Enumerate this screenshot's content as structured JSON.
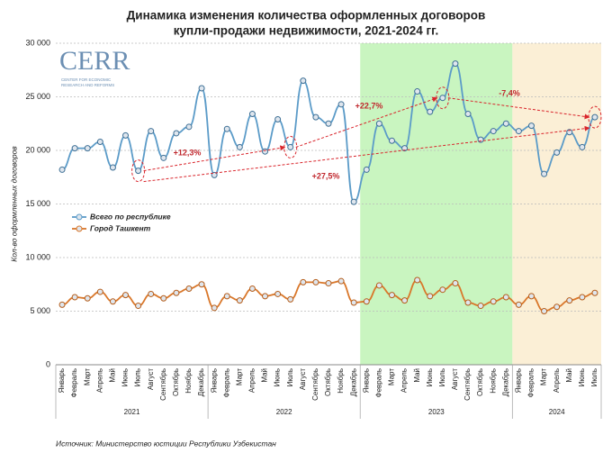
{
  "chart_data": {
    "type": "line",
    "title": [
      "Динамика изменения количества оформленных договоров",
      "купли-продажи недвижимости, 2021-2024 гг."
    ],
    "y_label": "Кол-во оформленных договоров",
    "source": "Источник: Министерство юстиции Республики Узбекистан",
    "logo": [
      "CERR",
      "CENTER FOR ECONOMIC",
      "RESEARCH AND REFORMS"
    ],
    "categories": [
      "Январь",
      "Февраль",
      "Март",
      "Апрель",
      "Май",
      "Июнь",
      "Июль",
      "Август",
      "Сентябрь",
      "Октябрь",
      "Ноябрь",
      "Декабрь",
      "Январь",
      "Февраль",
      "Март",
      "Апрель",
      "Май",
      "Июнь",
      "Июль",
      "Август",
      "Сентябрь",
      "Октябрь",
      "Ноябрь",
      "Декабрь",
      "Январь",
      "Февраль",
      "Март",
      "Апрель",
      "Май",
      "Июнь",
      "Июль",
      "Август",
      "Сентябрь",
      "Октябрь",
      "Ноябрь",
      "Декабрь",
      "Январь",
      "Февраль",
      "Март",
      "Апрель",
      "Май",
      "Июнь",
      "Июль"
    ],
    "years": [
      {
        "label": "2021",
        "months": 12,
        "color": null
      },
      {
        "label": "2022",
        "months": 12,
        "color": null
      },
      {
        "label": "2023",
        "months": 12,
        "color": "#c9f5c0"
      },
      {
        "label": "2024",
        "months": 7,
        "color": "#fbefd6"
      }
    ],
    "series": [
      {
        "name": "Всего по республике",
        "color": "#5b9bc8",
        "values": [
          18200,
          20200,
          20200,
          20800,
          18400,
          21400,
          18100,
          21800,
          19300,
          21600,
          22200,
          25800,
          17700,
          22000,
          20300,
          23400,
          19900,
          22900,
          20300,
          26500,
          23100,
          22500,
          24300,
          15200,
          18200,
          22500,
          20900,
          20200,
          25500,
          23600,
          24900,
          28100,
          23400,
          21000,
          21800,
          22500,
          21800,
          22300,
          17800,
          19800,
          21700,
          20300,
          23100
        ]
      },
      {
        "name": "Город Ташкент",
        "color": "#d9772a",
        "values": [
          5600,
          6300,
          6200,
          6800,
          5900,
          6500,
          5500,
          6600,
          6200,
          6700,
          7100,
          7500,
          5300,
          6400,
          6000,
          7100,
          6400,
          6600,
          6100,
          7700,
          7700,
          7600,
          7800,
          5800,
          5900,
          7400,
          6500,
          6000,
          7900,
          6400,
          7000,
          7600,
          5800,
          5500,
          5900,
          6300,
          5600,
          6400,
          5000,
          5400,
          6000,
          6300,
          6700
        ]
      }
    ],
    "ylim": [
      0,
      30000
    ],
    "yticks": [
      0,
      {
        "value": 5000,
        "label": "5 000"
      },
      {
        "value": 10000,
        "label": "10 000"
      },
      {
        "value": 15000,
        "label": "15 000"
      },
      {
        "value": 20000,
        "label": "20 000"
      },
      {
        "value": 25000,
        "label": "25 000"
      },
      {
        "value": 30000,
        "label": "30 000"
      }
    ],
    "grid": true,
    "legend": "upper-left",
    "annotations": [
      {
        "text": "+12,3%",
        "from": 6,
        "to": 18
      },
      {
        "text": "+22,7%",
        "from": 18,
        "to": 30
      },
      {
        "text": "+27,5%",
        "from": 6,
        "to": 42
      },
      {
        "text": "-7,4%",
        "from": 30,
        "to": 42
      }
    ]
  }
}
